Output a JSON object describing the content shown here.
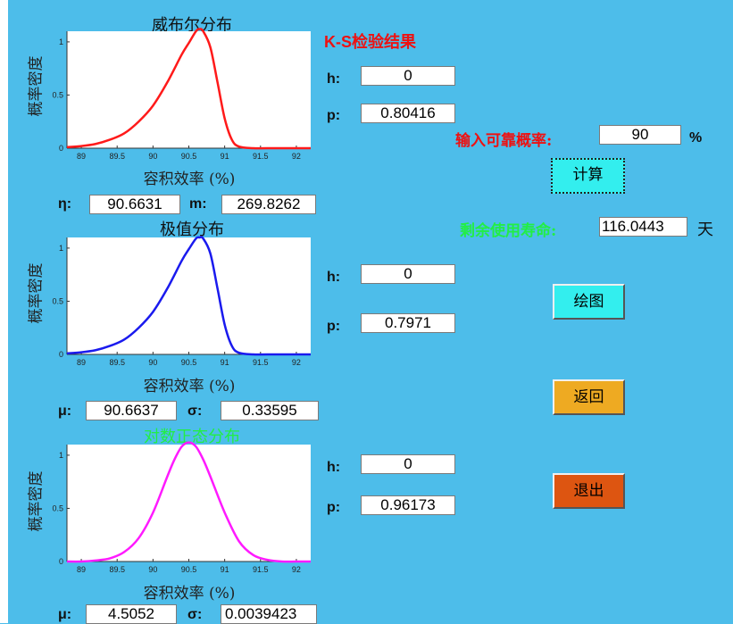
{
  "results_title": "K-S检验结果",
  "labels": {
    "h": "h:",
    "p": "p:"
  },
  "ks": [
    {
      "h": "0",
      "p": "0.80416"
    },
    {
      "h": "0",
      "p": "0.7971"
    },
    {
      "h": "0",
      "p": "0.96173"
    }
  ],
  "reliability": {
    "label": "输入可靠概率:",
    "value": "90",
    "unit": "%"
  },
  "buttons": {
    "compute": "计算",
    "plot": "绘图",
    "back": "返回",
    "exit": "退出"
  },
  "remaining_life": {
    "label": "剩余使用寿命:",
    "value": "116.0443",
    "unit": "天"
  },
  "colors": {
    "background": "#4dbdea",
    "weibull": "#ff1a1a",
    "extreme": "#1a1aee",
    "lognormal": "#ff1aff",
    "results_title": "#ee1111",
    "reliability_label": "#ee1111",
    "remaining_label": "#22ee44",
    "lognormal_title": "#22ee44",
    "compute_button": "#33eeee",
    "plot_button": "#33eeee",
    "back_button": "#eeaa22",
    "exit_button": "#dd5511"
  },
  "params": [
    {
      "label1": "η:",
      "value1": "90.6631",
      "label2": "m:",
      "value2": "269.8262"
    },
    {
      "label1": "μ:",
      "value1": "90.6637",
      "label2": "σ:",
      "value2": "0.33595"
    },
    {
      "label1": "μ:",
      "value1": "4.5052",
      "label2": "σ:",
      "value2": "0.0039423"
    }
  ],
  "chart_data": [
    {
      "type": "line",
      "title": "威布尔分布",
      "xlabel": "容积效率 (%)",
      "ylabel": "概率密度",
      "xlim": [
        88.8,
        92.2
      ],
      "ylim": [
        0,
        1.1
      ],
      "xticks": [
        "89",
        "89.5",
        "90",
        "90.5",
        "91",
        "91.5",
        "92"
      ],
      "yticks": [
        "0",
        "0.5",
        "1"
      ],
      "series": [
        {
          "color": "#ff1a1a",
          "x": [
            88.8,
            89.0,
            89.2,
            89.4,
            89.6,
            89.8,
            90.0,
            90.2,
            90.4,
            90.5,
            90.6,
            90.65,
            90.7,
            90.8,
            90.9,
            91.0,
            91.1,
            91.2,
            91.4,
            91.6,
            92.2
          ],
          "y": [
            0.01,
            0.02,
            0.04,
            0.08,
            0.14,
            0.25,
            0.4,
            0.62,
            0.88,
            0.99,
            1.1,
            1.12,
            1.1,
            0.95,
            0.62,
            0.28,
            0.08,
            0.015,
            0.0,
            0.0,
            0.0
          ]
        }
      ]
    },
    {
      "type": "line",
      "title": "极值分布",
      "xlabel": "容积效率 (%)",
      "ylabel": "概率密度",
      "xlim": [
        88.8,
        92.2
      ],
      "ylim": [
        0,
        1.1
      ],
      "xticks": [
        "89",
        "89.5",
        "90",
        "90.5",
        "91",
        "91.5",
        "92"
      ],
      "yticks": [
        "0",
        "0.5",
        "1"
      ],
      "series": [
        {
          "color": "#1a1aee",
          "x": [
            88.8,
            89.0,
            89.2,
            89.4,
            89.6,
            89.8,
            90.0,
            90.2,
            90.4,
            90.5,
            90.6,
            90.65,
            90.7,
            90.8,
            90.9,
            91.0,
            91.1,
            91.2,
            91.4,
            91.6,
            92.2
          ],
          "y": [
            0.01,
            0.02,
            0.04,
            0.08,
            0.14,
            0.25,
            0.4,
            0.62,
            0.88,
            0.99,
            1.09,
            1.1,
            1.09,
            0.95,
            0.62,
            0.28,
            0.08,
            0.015,
            0.0,
            0.0,
            0.0
          ]
        }
      ]
    },
    {
      "type": "line",
      "title": "对数正态分布",
      "xlabel": "容积效率 (%)",
      "ylabel": "概率密度",
      "xlim": [
        88.8,
        92.2
      ],
      "ylim": [
        0,
        1.1
      ],
      "xticks": [
        "89",
        "89.5",
        "90",
        "90.5",
        "91",
        "91.5",
        "92"
      ],
      "yticks": [
        "0",
        "0.5",
        "1"
      ],
      "series": [
        {
          "color": "#ff1aff",
          "x": [
            88.8,
            89.0,
            89.2,
            89.4,
            89.6,
            89.8,
            90.0,
            90.2,
            90.3,
            90.4,
            90.5,
            90.6,
            90.7,
            90.8,
            91.0,
            91.2,
            91.4,
            91.6,
            91.8,
            92.0,
            92.2
          ],
          "y": [
            0.0,
            0.0,
            0.01,
            0.03,
            0.09,
            0.22,
            0.46,
            0.8,
            0.96,
            1.08,
            1.12,
            1.08,
            0.96,
            0.8,
            0.46,
            0.19,
            0.06,
            0.015,
            0.0,
            0.0,
            0.0
          ]
        }
      ]
    }
  ]
}
